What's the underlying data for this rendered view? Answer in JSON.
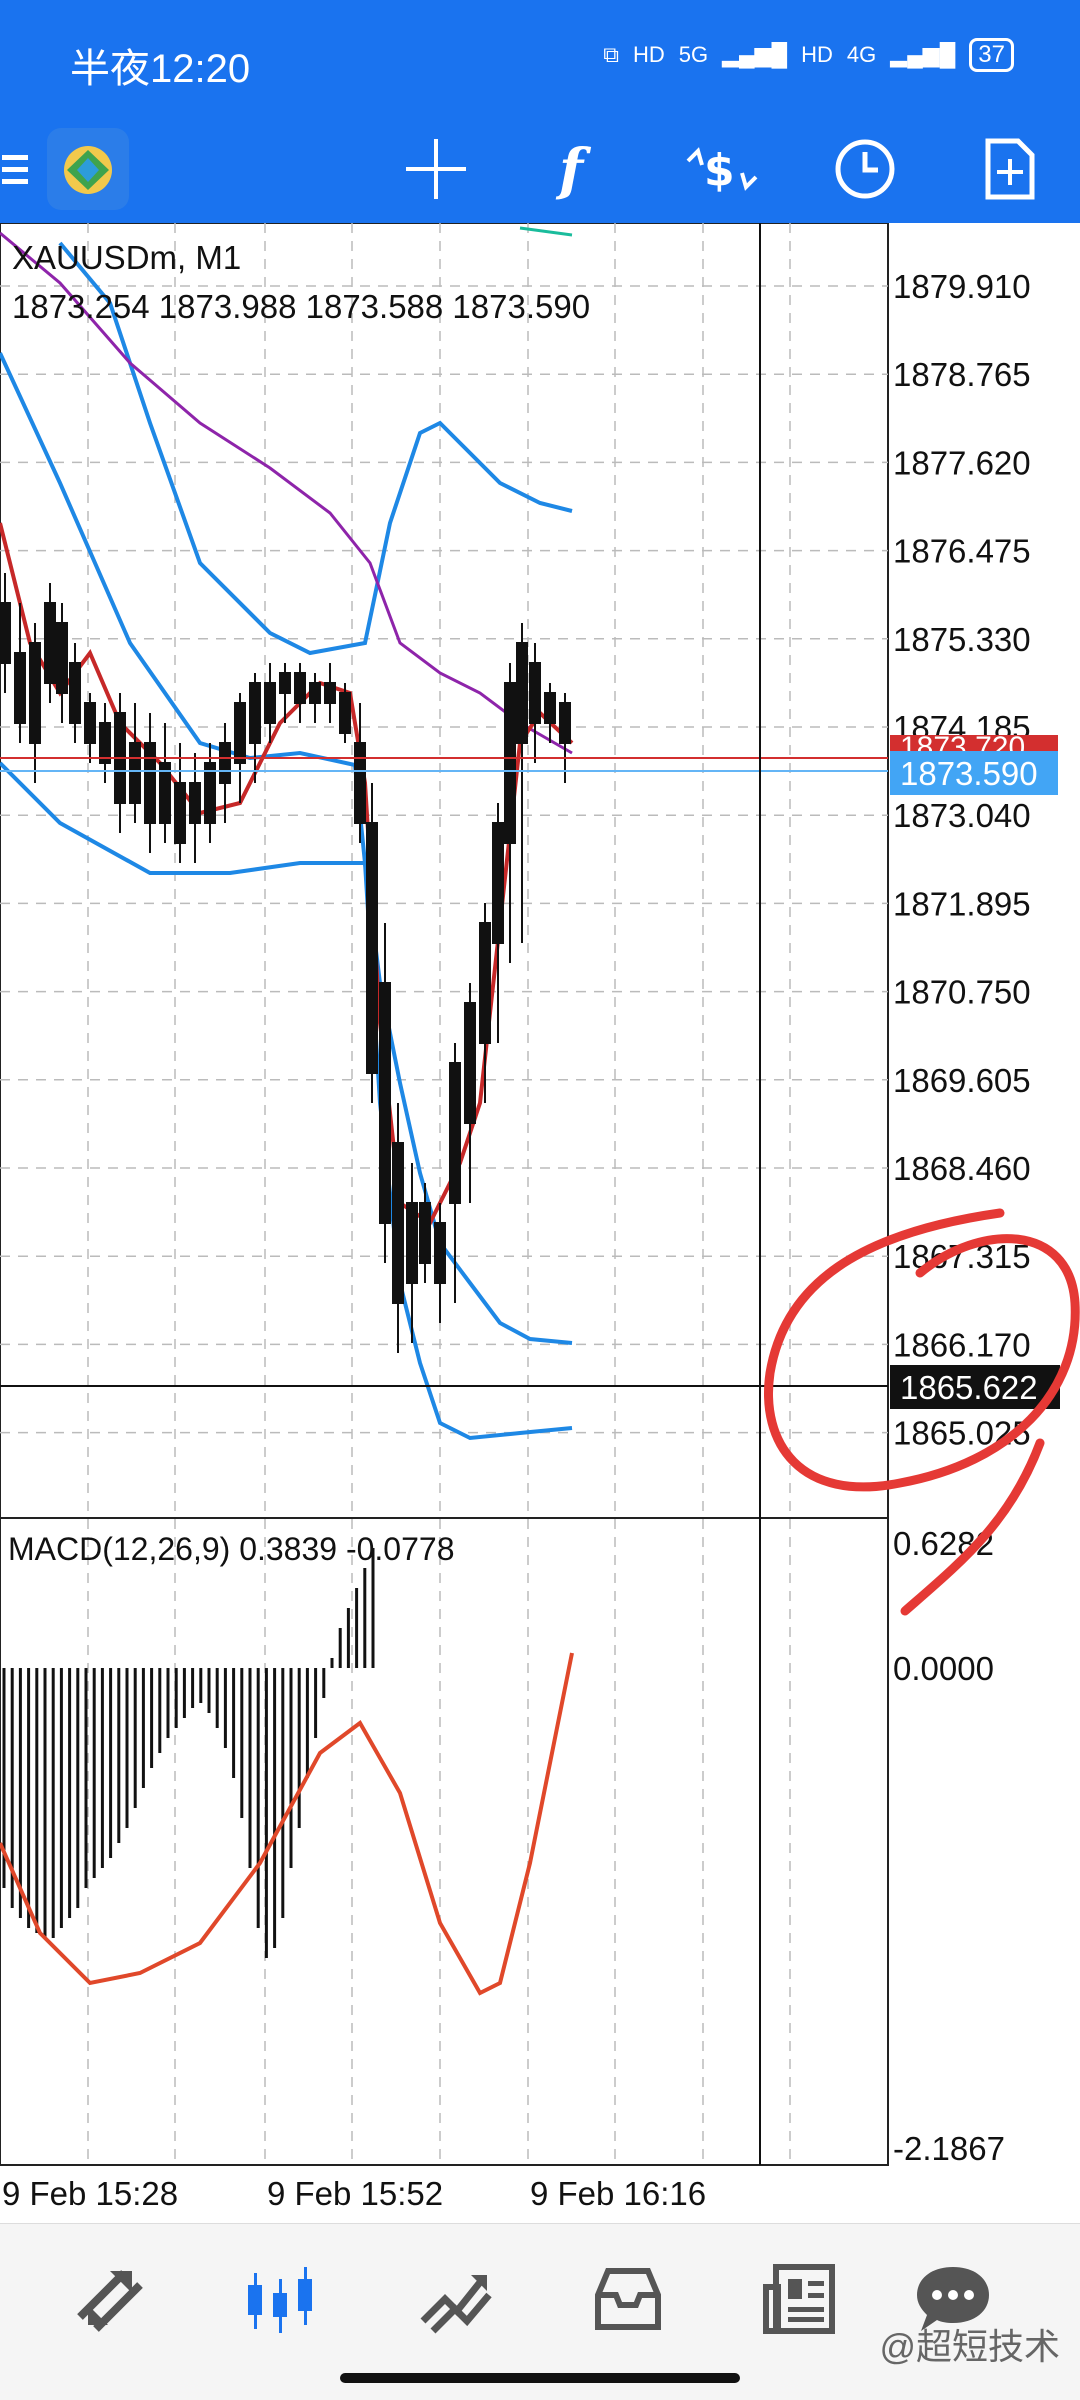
{
  "status": {
    "time": "半夜12:20",
    "net1": "5G",
    "net2": "4G",
    "hd": "HD",
    "battery": "37"
  },
  "toolbar": {
    "icons": [
      "menu-icon",
      "app-logo",
      "crosshair-icon",
      "function-icon",
      "price-tools-icon",
      "clock-icon",
      "new-document-icon"
    ]
  },
  "chart": {
    "symbol_label": "XAUUSDm, M1",
    "ohlc_label": "1873.254 1873.988 1873.588 1873.590",
    "price_labels": [
      "1879.910",
      "1878.765",
      "1877.620",
      "1876.475",
      "1875.330",
      "1874.185",
      "1873.040",
      "1871.895",
      "1870.750",
      "1869.605",
      "1868.460",
      "1867.315",
      "1866.170",
      "1865.025"
    ],
    "bid_price": "1873.590",
    "ask_price_partial": "1873.720",
    "crosshair_price": "1865.622",
    "macd_label": "MACD(12,26,9) 0.3839 -0.0778",
    "macd_labels": [
      "0.6282",
      "0.0000",
      "-2.1867"
    ],
    "time_labels": [
      "9 Feb 15:28",
      "9 Feb 15:52",
      "9 Feb 16:16"
    ],
    "colors": {
      "bollinger": "#1e88e5",
      "ma_fast": "#c62828",
      "ma_slow": "#8e24aa",
      "bid_line": "#64b5f6",
      "ask_line": "#d32f2f",
      "annotation": "#e53935"
    }
  },
  "bottom_nav": {
    "items": [
      "quotes-icon",
      "chart-icon",
      "trade-icon",
      "history-icon",
      "news-icon",
      "messages-icon"
    ]
  },
  "watermark": "@超短技术"
}
